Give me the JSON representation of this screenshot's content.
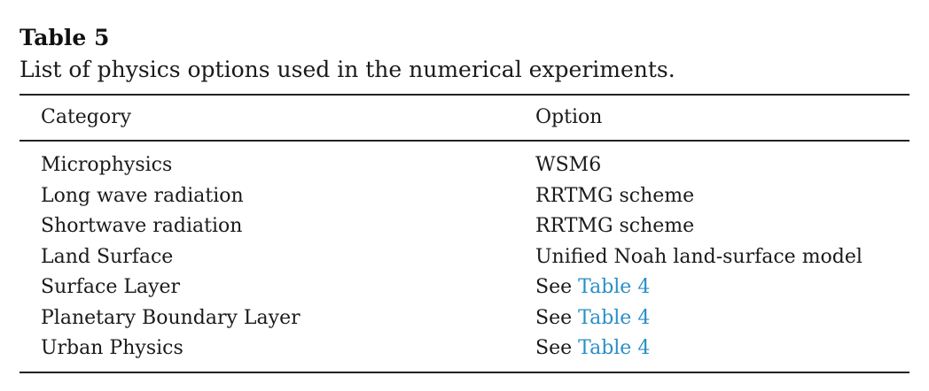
{
  "table": {
    "label": "Table 5",
    "caption": "List of physics options used in the numerical experiments.",
    "headers": {
      "category": "Category",
      "option": "Option"
    },
    "rows": [
      {
        "category": "Microphysics",
        "option_prefix": "",
        "option": "WSM6"
      },
      {
        "category": "Long wave radiation",
        "option_prefix": "",
        "option": "RRTMG scheme"
      },
      {
        "category": "Shortwave radiation",
        "option_prefix": "",
        "option": "RRTMG scheme"
      },
      {
        "category": "Land Surface",
        "option_prefix": "",
        "option": "Unified Noah land-surface model"
      },
      {
        "category": "Surface Layer",
        "option_prefix": "See ",
        "option_link": "Table 4"
      },
      {
        "category": "Planetary Boundary Layer",
        "option_prefix": "See ",
        "option_link": "Table 4"
      },
      {
        "category": "Urban Physics",
        "option_prefix": "See ",
        "option_link": "Table 4"
      }
    ],
    "link_color": "#2a8fc4"
  }
}
